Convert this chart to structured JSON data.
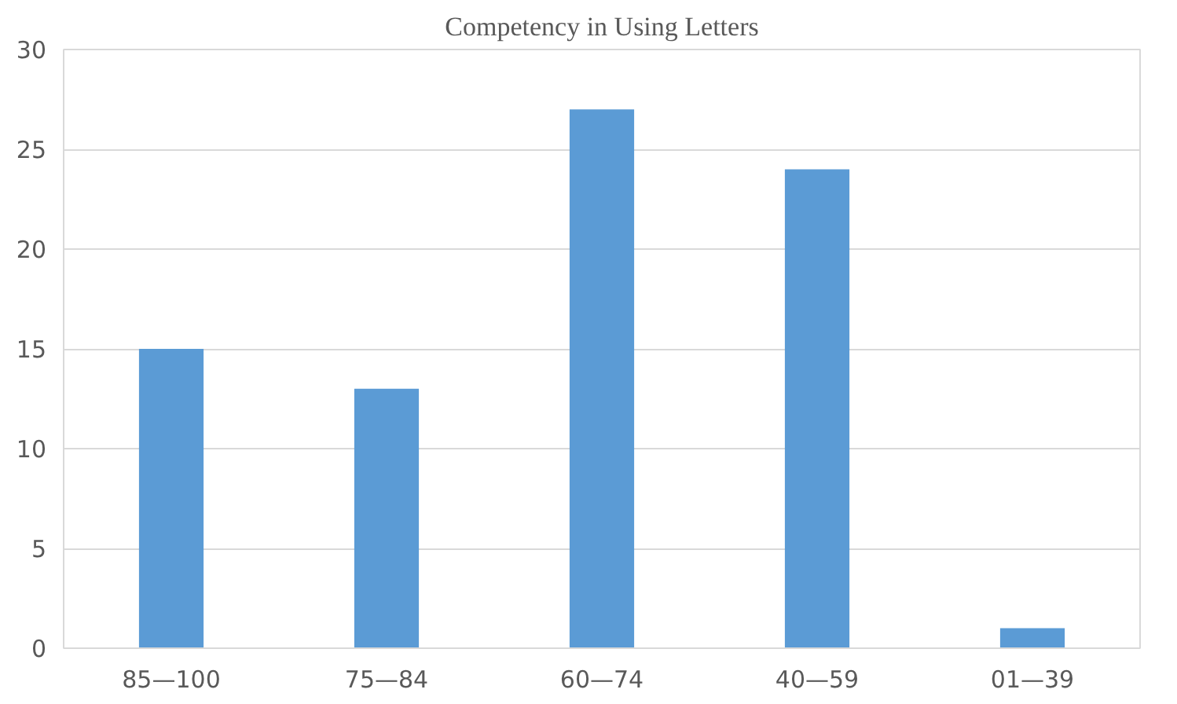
{
  "chart_data": {
    "type": "bar",
    "title": "Competency in Using Letters",
    "categories": [
      "85—100",
      "75—84",
      "60—74",
      "40—59",
      "01—39"
    ],
    "values": [
      15,
      13,
      27,
      24,
      1
    ],
    "color": "#5b9bd5",
    "ylim": [
      0,
      30
    ],
    "yticks": [
      0,
      5,
      10,
      15,
      20,
      25,
      30
    ],
    "grid": "y"
  }
}
